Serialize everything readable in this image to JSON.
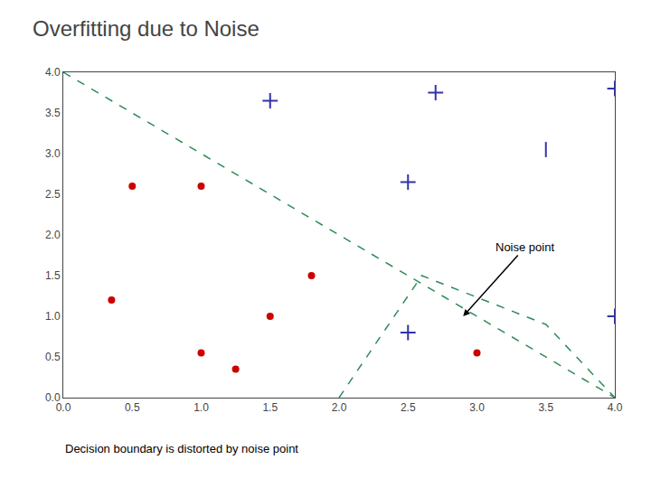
{
  "chart_data": {
    "type": "scatter",
    "title": "Overfitting due to Noise",
    "subtitle": "Decision boundary is distorted by noise point",
    "xlim": [
      0,
      4
    ],
    "ylim": [
      0,
      4
    ],
    "xticks": [
      {
        "value": 0,
        "label": "0.0"
      },
      {
        "value": 0.5,
        "label": "0.5"
      },
      {
        "value": 1,
        "label": "1.0"
      },
      {
        "value": 1.5,
        "label": "1.5"
      },
      {
        "value": 2,
        "label": "2.0"
      },
      {
        "value": 2.5,
        "label": "2.5"
      },
      {
        "value": 3,
        "label": "3.0"
      },
      {
        "value": 3.5,
        "label": "3.5"
      },
      {
        "value": 4,
        "label": "4.0"
      }
    ],
    "yticks": [
      {
        "value": 0,
        "label": "0.0"
      },
      {
        "value": 0.5,
        "label": "0.5"
      },
      {
        "value": 1,
        "label": "1.0"
      },
      {
        "value": 1.5,
        "label": "1.5"
      },
      {
        "value": 2,
        "label": "2.0"
      },
      {
        "value": 2.5,
        "label": "2.5"
      },
      {
        "value": 3,
        "label": "3.0"
      },
      {
        "value": 3.5,
        "label": "3.5"
      },
      {
        "value": 4,
        "label": "4.0"
      }
    ],
    "grid": false,
    "series": [
      {
        "type": "scatter",
        "marker": "circle",
        "color": "#cc0000",
        "x": [
          0.35,
          0.5,
          1.0,
          1.0,
          1.25,
          1.5,
          1.8,
          3.0
        ],
        "values": [
          1.2,
          2.6,
          2.6,
          0.55,
          0.35,
          1.0,
          1.5,
          0.55
        ]
      },
      {
        "type": "scatter",
        "marker": "plus",
        "color": "#3333aa",
        "x": [
          1.5,
          2.7,
          4.0,
          2.5,
          2.5,
          4.0
        ],
        "values": [
          3.65,
          3.75,
          3.8,
          2.65,
          0.8,
          1.0
        ]
      },
      {
        "type": "scatter",
        "marker": "vline",
        "color": "#3333aa",
        "x": [
          3.5
        ],
        "values": [
          3.05
        ]
      },
      {
        "type": "line",
        "line_style": "dashed",
        "color": "#2e8b57",
        "x": [
          0,
          4.0
        ],
        "values": [
          4.0,
          0.0
        ]
      },
      {
        "type": "line",
        "line_style": "dashed",
        "color": "#2e8b57",
        "x": [
          2.0,
          2.6,
          3.5,
          4.0
        ],
        "values": [
          0.0,
          1.5,
          0.9,
          0.0
        ]
      }
    ],
    "annotations": [
      {
        "text": "Noise point",
        "x": 2.9,
        "y": 1.0,
        "text_x": 3.35,
        "text_y": 1.85
      }
    ]
  }
}
